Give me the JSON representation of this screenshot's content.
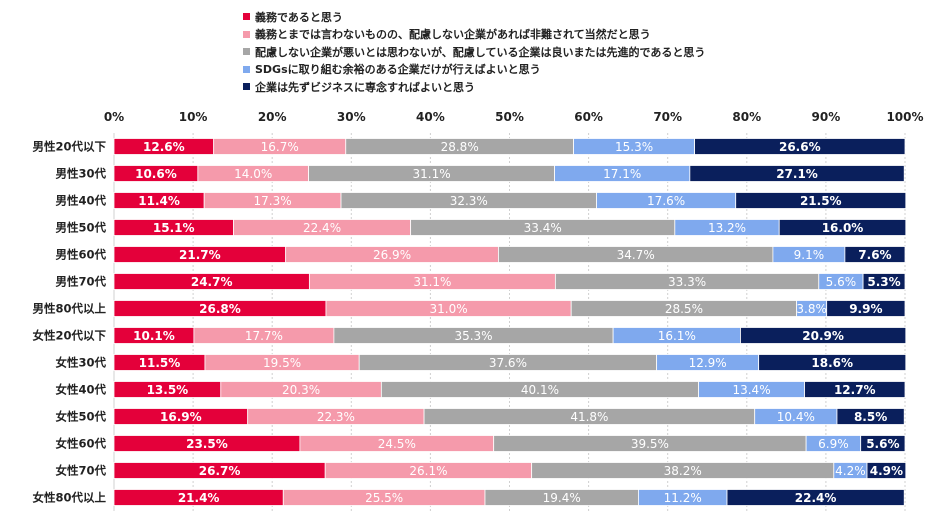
{
  "chart_data": {
    "type": "bar",
    "orientation": "horizontal",
    "stacked": true,
    "normalized": true,
    "xlim": [
      0,
      100
    ],
    "x_ticks": [
      "0%",
      "10%",
      "20%",
      "30%",
      "40%",
      "50%",
      "60%",
      "70%",
      "80%",
      "90%",
      "100%"
    ],
    "categories": [
      "男性20代以下",
      "男性30代",
      "男性40代",
      "男性50代",
      "男性60代",
      "男性70代",
      "男性80代以上",
      "女性20代以下",
      "女性30代",
      "女性40代",
      "女性50代",
      "女性60代",
      "女性70代",
      "女性80代以上"
    ],
    "series": [
      {
        "name": "義務であると思う",
        "color": "#e4003a",
        "values": [
          12.6,
          10.6,
          11.4,
          15.1,
          21.7,
          24.7,
          26.8,
          10.1,
          11.5,
          13.5,
          16.9,
          23.5,
          26.7,
          21.4
        ]
      },
      {
        "name": "義務とまでは言わないものの、配慮しない企業があれば非難されて当然だと思う",
        "color": "#f59aab",
        "values": [
          16.7,
          14.0,
          17.3,
          22.4,
          26.9,
          31.1,
          31.0,
          17.7,
          19.5,
          20.3,
          22.3,
          24.5,
          26.1,
          25.5
        ]
      },
      {
        "name": "配慮しない企業が悪いとは思わないが、配慮している企業は良いまたは先進的であると思う",
        "color": "#a6a6a6",
        "values": [
          28.8,
          31.1,
          32.3,
          33.4,
          34.7,
          33.3,
          28.5,
          35.3,
          37.6,
          40.1,
          41.8,
          39.5,
          38.2,
          19.4
        ]
      },
      {
        "name": "SDGsに取り組む余裕のある企業だけが行えばよいと思う",
        "color": "#7fa9ee",
        "values": [
          15.3,
          17.1,
          17.6,
          13.2,
          9.1,
          5.6,
          3.8,
          16.1,
          12.9,
          13.4,
          10.4,
          6.9,
          4.2,
          11.2
        ]
      },
      {
        "name": "企業は先ずビジネスに専念すればよいと思う",
        "color": "#0a1f5c",
        "values": [
          26.6,
          27.1,
          21.5,
          16.0,
          7.6,
          5.3,
          9.9,
          20.9,
          18.6,
          12.7,
          8.5,
          5.6,
          4.9,
          22.4
        ]
      }
    ],
    "value_labels": [
      [
        "12.6%",
        "10.6%",
        "11.4%",
        "15.1%",
        "21.7%",
        "24.7%",
        "26.8%",
        "10.1%",
        "11.5%",
        "13.5%",
        "16.9%",
        "23.5%",
        "26.7%",
        "21.4%"
      ],
      [
        "16.7%",
        "14.0%",
        "17.3%",
        "22.4%",
        "26.9%",
        "31.1%",
        "31.0%",
        "17.7%",
        "19.5%",
        "20.3%",
        "22.3%",
        "24.5%",
        "26.1%",
        "25.5%"
      ],
      [
        "28.8%",
        "31.1%",
        "32.3%",
        "33.4%",
        "34.7%",
        "33.3%",
        "28.5%",
        "35.3%",
        "37.6%",
        "40.1%",
        "41.8%",
        "39.5%",
        "38.2%",
        "19.4%"
      ],
      [
        "15.3%",
        "17.1%",
        "17.6%",
        "13.2%",
        "9.1%",
        "5.6%",
        "3.8%",
        "16.1%",
        "12.9%",
        "13.4%",
        "10.4%",
        "6.9%",
        "4.2%",
        "11.2%"
      ],
      [
        "26.6%",
        "27.1%",
        "21.5%",
        "16.0%",
        "7.6%",
        "5.3%",
        "9.9%",
        "20.9%",
        "18.6%",
        "12.7%",
        "8.5%",
        "5.6%",
        "4.9%",
        "22.4%"
      ]
    ],
    "legend_position": "top",
    "grid": true
  }
}
